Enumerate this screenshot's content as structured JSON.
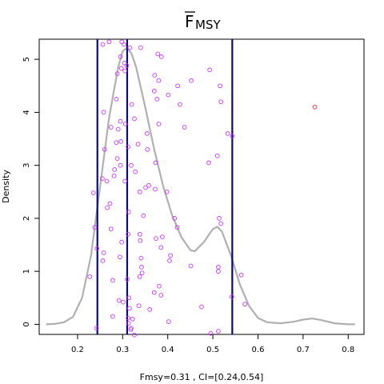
{
  "chart_data": {
    "type": "scatter",
    "title": "F̅MSY",
    "title_base": "F",
    "title_sub": "MSY",
    "title_overline": true,
    "xlabel": "Fmsy=0.31 , CI=[0.24,0.54]",
    "ylabel": "Density",
    "xlim": [
      0.115,
      0.835
    ],
    "ylim": [
      -0.19,
      5.38
    ],
    "xticks": [
      0.2,
      0.3,
      0.4,
      0.5,
      0.6,
      0.7,
      0.8
    ],
    "xtick_labels": [
      "0.2",
      "0.3",
      "0.4",
      "0.5",
      "0.6",
      "0.7",
      "0.8"
    ],
    "yticks": [
      0,
      1,
      2,
      3,
      4,
      5
    ],
    "ytick_labels": [
      "0",
      "1",
      "2",
      "3",
      "4",
      "5"
    ],
    "grid": false,
    "vertical_lines": {
      "color": "#0a0a80",
      "x": [
        0.244,
        0.31,
        0.543
      ]
    },
    "density_curve": {
      "color": "#b0b0b0",
      "x": [
        0.13,
        0.15,
        0.17,
        0.19,
        0.21,
        0.23,
        0.25,
        0.27,
        0.29,
        0.3,
        0.31,
        0.32,
        0.33,
        0.35,
        0.37,
        0.39,
        0.41,
        0.43,
        0.45,
        0.46,
        0.48,
        0.5,
        0.51,
        0.52,
        0.54,
        0.56,
        0.58,
        0.6,
        0.62,
        0.65,
        0.68,
        0.7,
        0.72,
        0.74,
        0.77,
        0.8,
        0.815
      ],
      "y": [
        0.0,
        0.01,
        0.04,
        0.14,
        0.5,
        1.3,
        2.6,
        3.9,
        4.85,
        5.15,
        5.22,
        5.1,
        4.85,
        4.1,
        3.3,
        2.6,
        2.05,
        1.65,
        1.4,
        1.38,
        1.55,
        1.8,
        1.84,
        1.75,
        1.3,
        0.75,
        0.35,
        0.12,
        0.04,
        0.02,
        0.05,
        0.09,
        0.11,
        0.08,
        0.02,
        0.0,
        0.0
      ]
    },
    "points": {
      "color": "#cc33ff",
      "x": [
        0.256,
        0.27,
        0.298,
        0.303,
        0.316,
        0.34,
        0.378,
        0.386,
        0.295,
        0.304,
        0.309,
        0.297,
        0.305,
        0.371,
        0.38,
        0.493,
        0.288,
        0.452,
        0.516,
        0.422,
        0.37,
        0.401,
        0.286,
        0.376,
        0.518,
        0.258,
        0.427,
        0.32,
        0.326,
        0.295,
        0.306,
        0.38,
        0.274,
        0.437,
        0.29,
        0.354,
        0.533,
        0.543,
        0.296,
        0.286,
        0.334,
        0.312,
        0.355,
        0.26,
        0.51,
        0.288,
        0.373,
        0.491,
        0.295,
        0.319,
        0.282,
        0.328,
        0.281,
        0.255,
        0.305,
        0.265,
        0.358,
        0.351,
        0.372,
        0.398,
        0.338,
        0.235,
        0.272,
        0.266,
        0.313,
        0.346,
        0.415,
        0.514,
        0.518,
        0.238,
        0.421,
        0.274,
        0.338,
        0.312,
        0.388,
        0.374,
        0.339,
        0.298,
        0.385,
        0.243,
        0.258,
        0.406,
        0.294,
        0.341,
        0.256,
        0.404,
        0.451,
        0.512,
        0.342,
        0.512,
        0.343,
        0.563,
        0.338,
        0.227,
        0.31,
        0.278,
        0.381,
        0.37,
        0.385,
        0.542,
        0.314,
        0.292,
        0.301,
        0.571,
        0.336,
        0.475,
        0.315,
        0.36,
        0.278,
        0.312,
        0.322,
        0.402,
        0.313,
        0.242,
        0.319,
        0.318,
        0.512,
        0.495,
        0.326
      ],
      "y": [
        5.28,
        5.33,
        5.33,
        5.28,
        5.22,
        5.22,
        5.1,
        5.05,
        5.05,
        4.93,
        4.88,
        4.83,
        4.78,
        4.7,
        4.6,
        4.8,
        4.73,
        4.6,
        4.5,
        4.5,
        4.4,
        4.33,
        4.25,
        4.25,
        4.2,
        4.0,
        4.15,
        4.15,
        3.88,
        3.83,
        3.78,
        3.78,
        3.72,
        3.72,
        3.68,
        3.6,
        3.6,
        3.55,
        3.45,
        3.43,
        3.4,
        3.35,
        3.3,
        3.3,
        3.18,
        3.13,
        3.05,
        3.05,
        3.0,
        3.0,
        2.92,
        2.88,
        2.8,
        2.75,
        2.7,
        2.7,
        2.62,
        2.58,
        2.55,
        2.5,
        2.5,
        2.48,
        2.28,
        2.2,
        2.12,
        2.05,
        2.0,
        2.0,
        1.9,
        1.83,
        1.83,
        1.8,
        1.7,
        1.7,
        1.65,
        1.62,
        1.58,
        1.55,
        1.45,
        1.43,
        1.35,
        1.3,
        1.27,
        1.25,
        1.2,
        1.2,
        1.1,
        1.08,
        1.08,
        1.0,
        0.97,
        0.93,
        0.9,
        0.9,
        0.85,
        0.83,
        0.72,
        0.6,
        0.55,
        0.52,
        0.5,
        0.45,
        0.42,
        0.38,
        0.35,
        0.33,
        0.3,
        0.28,
        0.15,
        0.12,
        0.1,
        0.05,
        0.02,
        -0.07,
        -0.07,
        -0.1,
        -0.13,
        -0.17,
        -0.2
      ],
      "outlier": {
        "x": 0.726,
        "y": 4.1,
        "color": "#ff2222"
      }
    }
  }
}
